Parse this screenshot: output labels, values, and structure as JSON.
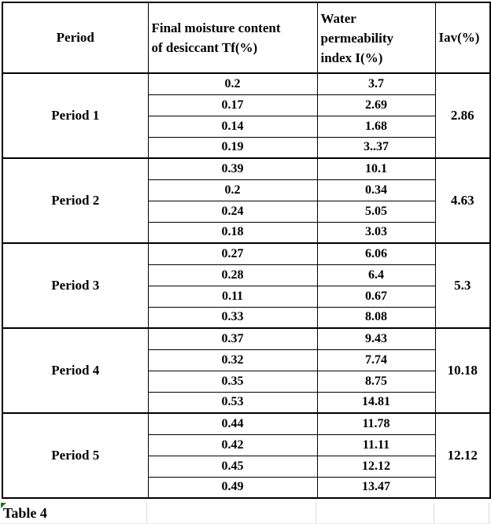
{
  "chart_data": {
    "type": "table",
    "title": "Table 4",
    "columns": [
      "Period",
      "Final moisture content of desiccant Tf(%)",
      "Water permeability index I(%)",
      "Iav(%)"
    ],
    "groups": [
      {
        "label": "Period 1",
        "iav": "2.86",
        "rows": [
          {
            "tf": "0.2",
            "i": "3.7"
          },
          {
            "tf": "0.17",
            "i": "2.69"
          },
          {
            "tf": "0.14",
            "i": "1.68"
          },
          {
            "tf": "0.19",
            "i": "3..37"
          }
        ]
      },
      {
        "label": "Period 2",
        "iav": "4.63",
        "rows": [
          {
            "tf": "0.39",
            "i": "10.1"
          },
          {
            "tf": "0.2",
            "i": "0.34"
          },
          {
            "tf": "0.24",
            "i": "5.05"
          },
          {
            "tf": "0.18",
            "i": "3.03"
          }
        ]
      },
      {
        "label": "Period 3",
        "iav": "5.3",
        "rows": [
          {
            "tf": "0.27",
            "i": "6.06"
          },
          {
            "tf": "0.28",
            "i": "6.4"
          },
          {
            "tf": "0.11",
            "i": "0.67"
          },
          {
            "tf": "0.33",
            "i": "8.08"
          }
        ]
      },
      {
        "label": "Period 4",
        "iav": "10.18",
        "rows": [
          {
            "tf": "0.37",
            "i": "9.43"
          },
          {
            "tf": "0.32",
            "i": "7.74"
          },
          {
            "tf": "0.35",
            "i": "8.75"
          },
          {
            "tf": "0.53",
            "i": "14.81"
          }
        ]
      },
      {
        "label": "Period 5",
        "iav": "12.12",
        "rows": [
          {
            "tf": "0.44",
            "i": "11.78"
          },
          {
            "tf": "0.42",
            "i": "11.11"
          },
          {
            "tf": "0.45",
            "i": "12.12"
          },
          {
            "tf": "0.49",
            "i": "13.47"
          }
        ]
      }
    ]
  },
  "header_lines": {
    "period": "Period",
    "tf": [
      "Final moisture content",
      "of desiccant Tf(%)"
    ],
    "i": [
      "Water",
      "permeability",
      "index I(%)"
    ],
    "iav": "Iav(%)"
  },
  "caption": {
    "label": "Table 4"
  },
  "colors": {
    "border": "#000000",
    "text": "#000000",
    "background": "#ffffff",
    "caption_gridline": "#d9d9d9",
    "corner_marker_green": "#107c10"
  }
}
